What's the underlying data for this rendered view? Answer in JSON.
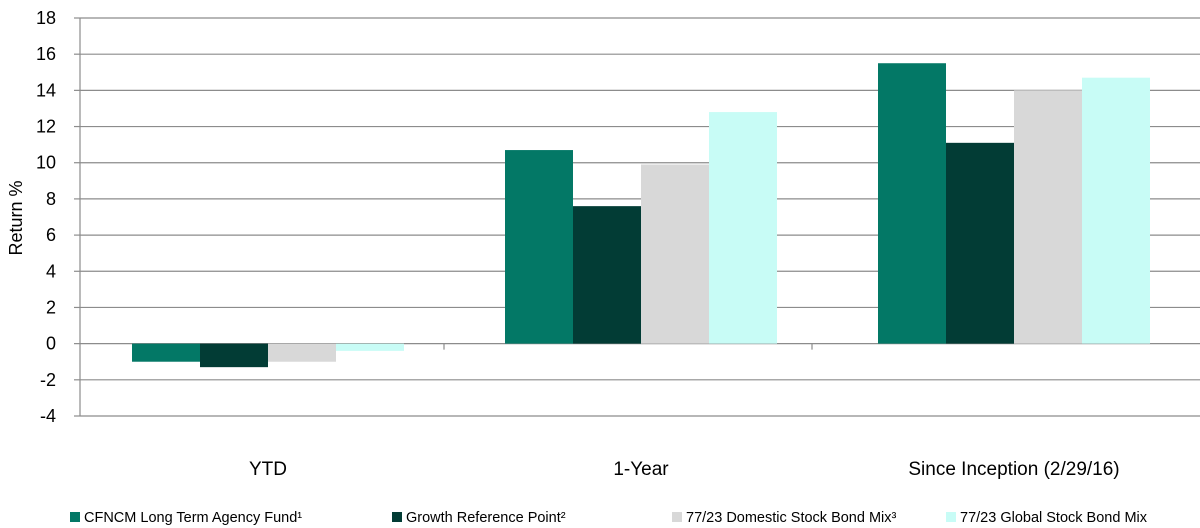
{
  "chart_data": {
    "type": "bar",
    "title": "",
    "xlabel": "",
    "ylabel": "Return %",
    "ylim": [
      -4,
      18
    ],
    "ytick_step": 2,
    "grid": true,
    "legend_position": "bottom",
    "categories": [
      "YTD",
      "1-Year",
      "Since Inception (2/29/16)"
    ],
    "series": [
      {
        "name": "CFNCM Long Term Agency Fund¹",
        "color": "#037866",
        "values": [
          -1.0,
          10.7,
          15.5
        ]
      },
      {
        "name": "Growth Reference Point²",
        "color": "#023c35",
        "values": [
          -1.3,
          7.6,
          11.1
        ]
      },
      {
        "name": "77/23 Domestic Stock Bond Mix³",
        "color": "#d8d8d8",
        "values": [
          -1.0,
          9.9,
          14.0
        ]
      },
      {
        "name": "77/23 Global Stock Bond Mix",
        "color": "#c8fcf6",
        "values": [
          -0.4,
          12.8,
          14.7
        ]
      }
    ]
  }
}
